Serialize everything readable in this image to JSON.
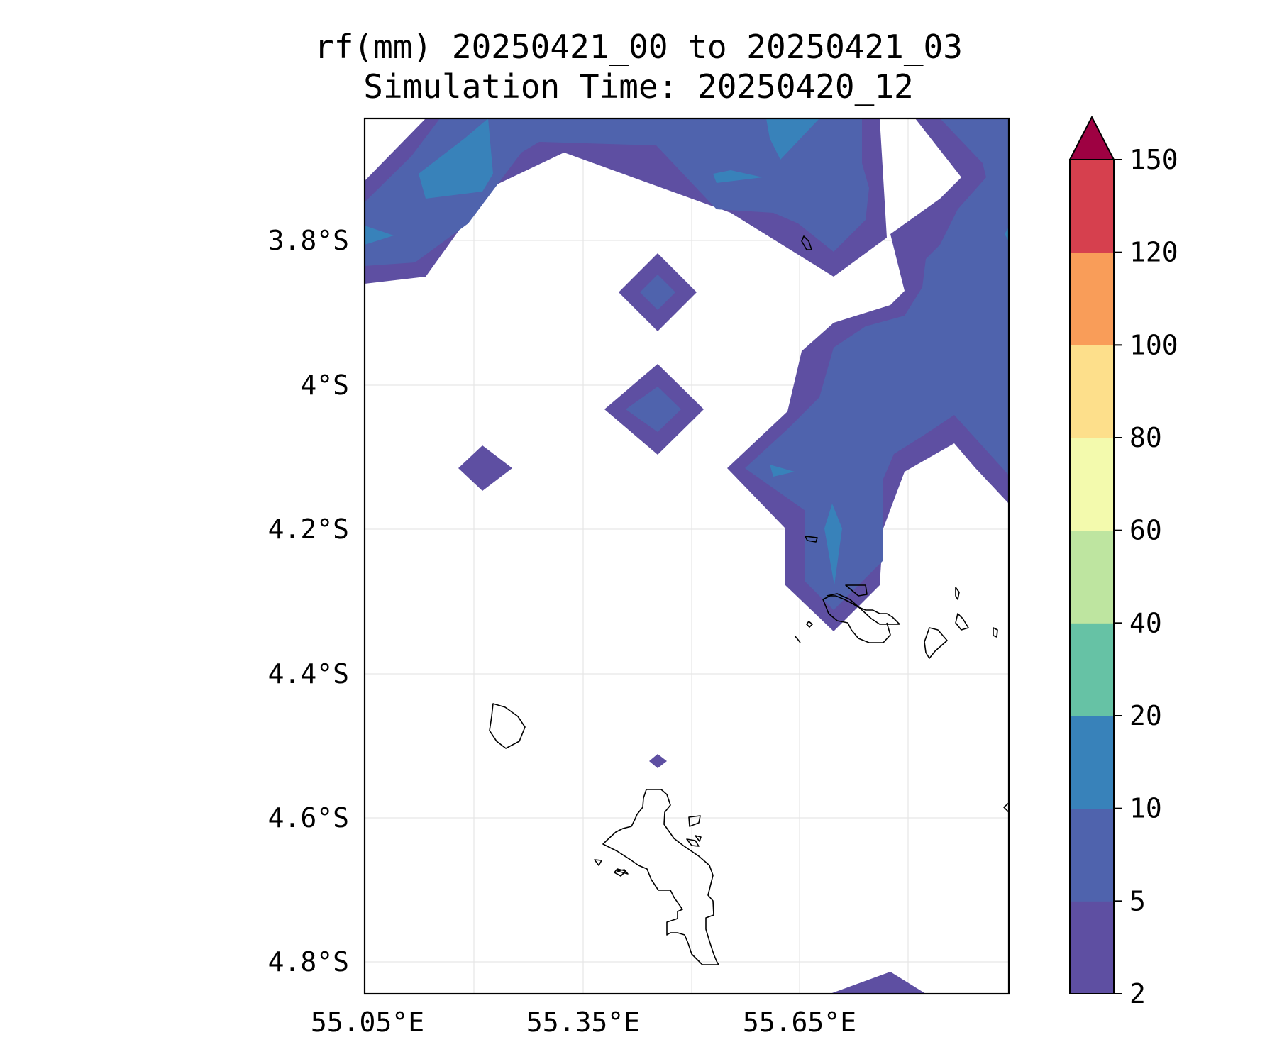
{
  "title": {
    "line1": "rf(mm) 20250421_00 to 20250421_03",
    "line2": "Simulation Time: 20250420_12"
  },
  "map": {
    "lat_ticks": [
      "3.8°S",
      "4°S",
      "4.2°S",
      "4.4°S",
      "4.6°S",
      "4.8°S"
    ],
    "lon_ticks": [
      "55.05°E",
      "55.35°E",
      "55.65°E"
    ],
    "extent": {
      "lon_min": 55.05,
      "lon_max": 55.94,
      "lat_top": -3.63,
      "lat_bottom": -4.84
    },
    "gridlines": true
  },
  "colorbar": {
    "levels": [
      "2",
      "5",
      "10",
      "20",
      "40",
      "60",
      "80",
      "100",
      "120",
      "150"
    ],
    "colors": [
      "#5e4fa2",
      "#4f63ad",
      "#3882ba",
      "#66c2a5",
      "#bee5a0",
      "#f3faad",
      "#fddf8b",
      "#f99d59",
      "#d6404e",
      "#9e0142"
    ],
    "extend": "max"
  }
}
